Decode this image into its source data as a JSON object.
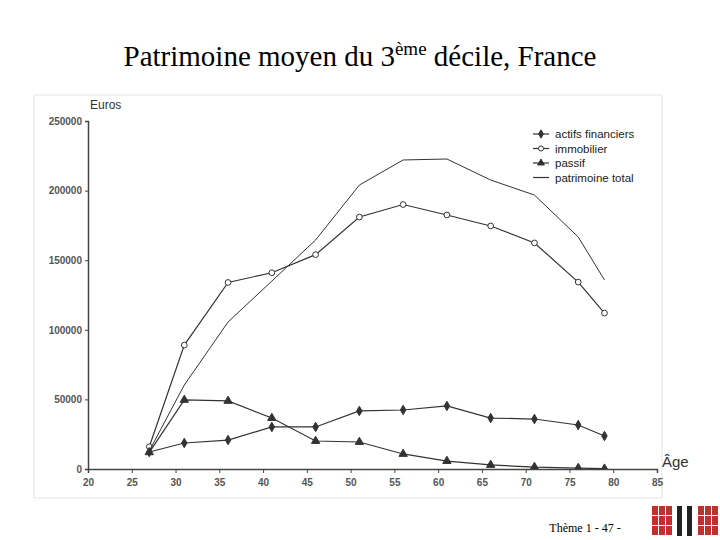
{
  "chart_data": {
    "type": "line",
    "title": "Patrimoine moyen du 3ème décile, France",
    "xlabel": "Âge",
    "ylabel": "Euros",
    "x": [
      27,
      31,
      36,
      41,
      46,
      51,
      56,
      61,
      66,
      71,
      76,
      79
    ],
    "series": [
      {
        "name": "actifs financiers",
        "color": "#333333",
        "marker": "diamond",
        "line_style": "solid",
        "values": [
          12200,
          18700,
          20800,
          30200,
          30200,
          41700,
          42400,
          45300,
          36600,
          35900,
          31600,
          23700
        ]
      },
      {
        "name": "immobilier",
        "color": "#333333",
        "marker": "circle-open",
        "line_style": "solid",
        "values": [
          16000,
          89000,
          134000,
          141000,
          154000,
          181000,
          190000,
          182500,
          174600,
          162400,
          134300,
          112000
        ]
      },
      {
        "name": "passif",
        "color": "#333333",
        "marker": "triangle",
        "line_style": "solid",
        "values": [
          12000,
          49600,
          48900,
          36600,
          20100,
          19400,
          10800,
          5700,
          2900,
          1400,
          700,
          200
        ]
      },
      {
        "name": "patrimoine total",
        "color": "#333333",
        "marker": "none",
        "line_style": "solid",
        "values": [
          13000,
          60300,
          105600,
          135000,
          164500,
          204000,
          222000,
          222700,
          207600,
          196800,
          166700,
          135800
        ]
      }
    ],
    "xlim": [
      20,
      85
    ],
    "xticks": [
      20,
      25,
      30,
      35,
      40,
      45,
      50,
      55,
      60,
      65,
      70,
      75,
      80,
      85
    ],
    "ylim": [
      0,
      250000
    ],
    "yticks": [
      0,
      50000,
      100000,
      150000,
      200000,
      250000
    ],
    "grid": false,
    "legend": "upper right"
  },
  "footer": "Thème 1 - 47 -"
}
